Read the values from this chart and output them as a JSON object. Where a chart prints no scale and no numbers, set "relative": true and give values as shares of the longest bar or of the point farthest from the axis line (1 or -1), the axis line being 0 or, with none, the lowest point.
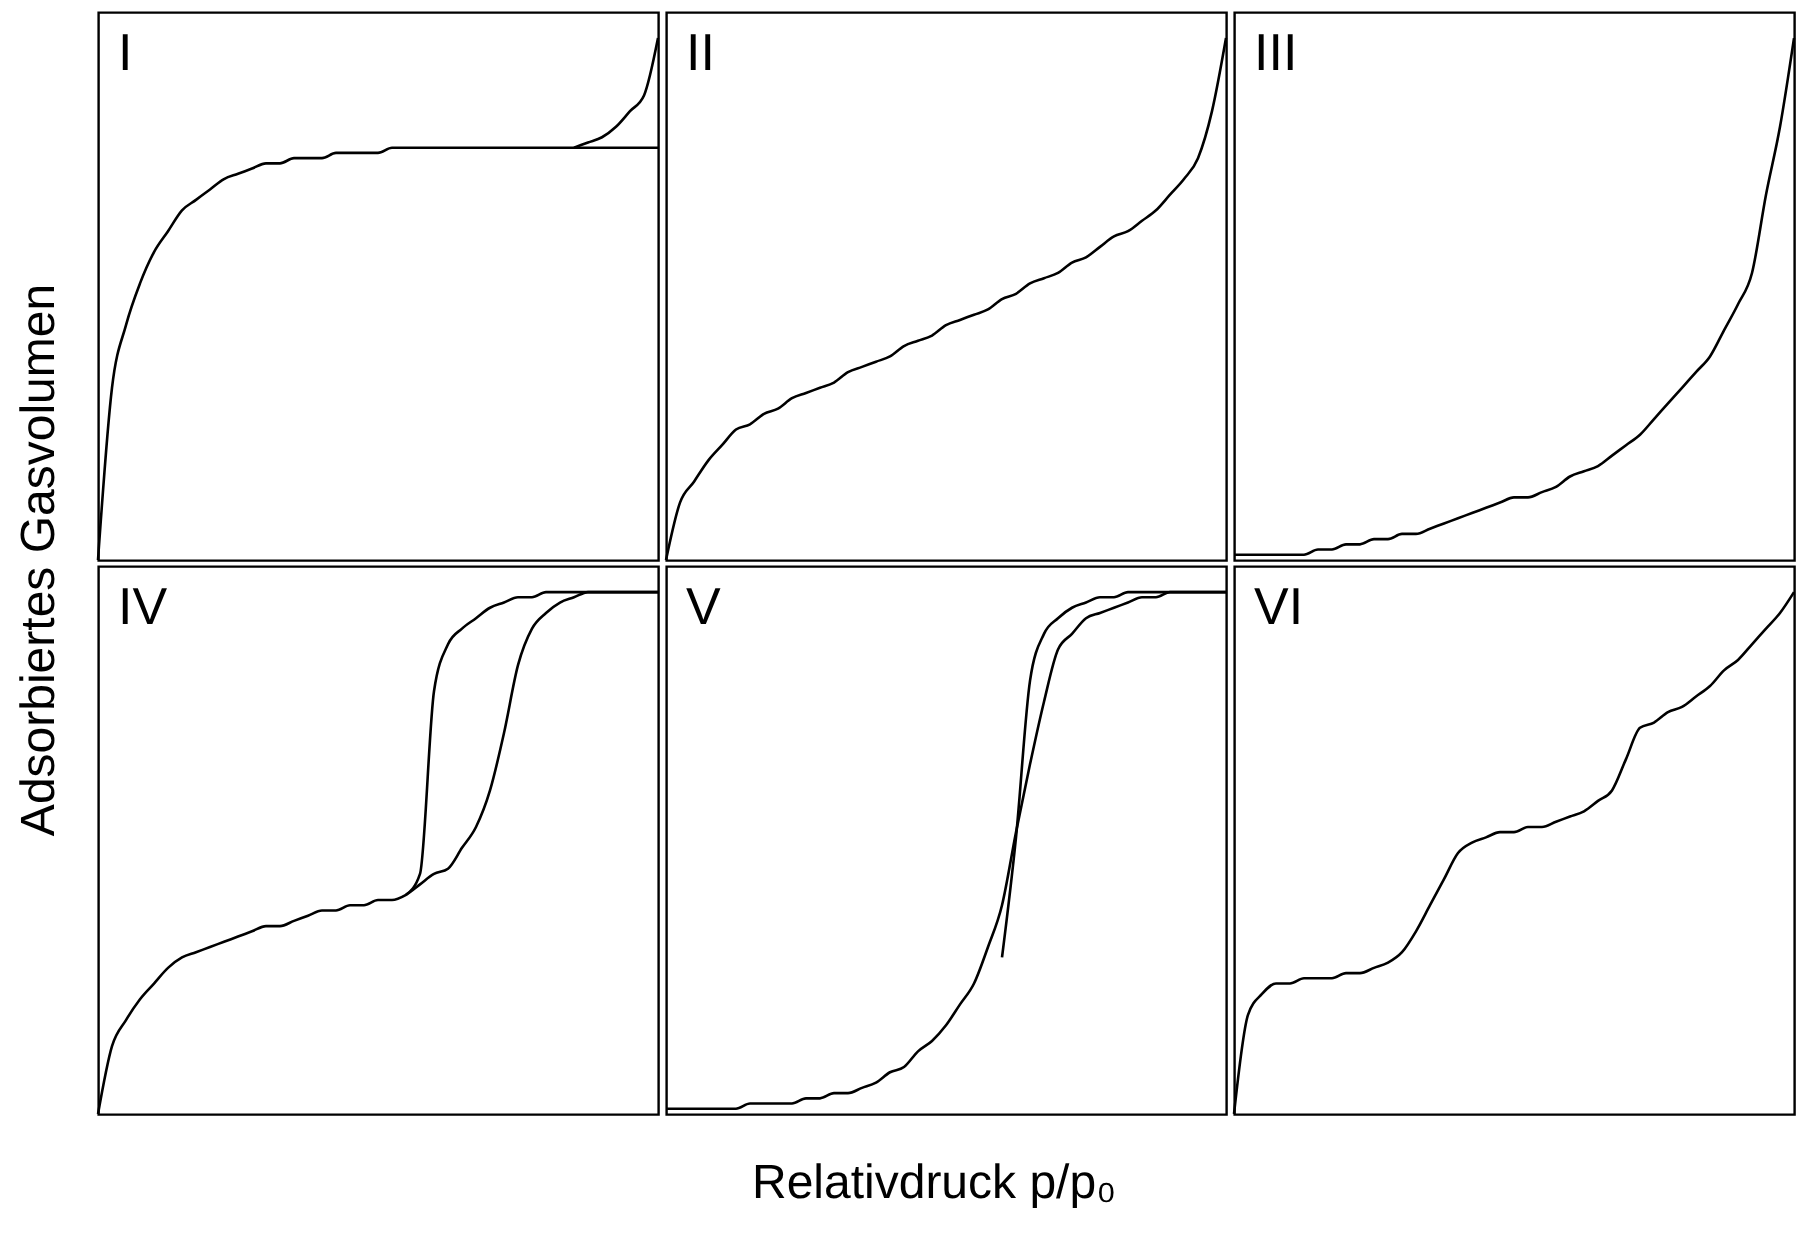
{
  "chart_data": [
    {
      "type": "line",
      "title": "I",
      "ylabel": "Adsorbiertes Gasvolumen",
      "relative": true,
      "tick_labels": false,
      "line_style": "solid",
      "categories": [
        null,
        null,
        null,
        null,
        null,
        null,
        null,
        null,
        null,
        null,
        null,
        null,
        null,
        null,
        null,
        null,
        null,
        null,
        null,
        null,
        null,
        null,
        null,
        null,
        null,
        null,
        null,
        null,
        null,
        null,
        null,
        null,
        null,
        null,
        null,
        null,
        null,
        null,
        null,
        null,
        null
      ],
      "series": [
        {
          "color": "#000000",
          "values": [
            0,
            0.33,
            0.45,
            0.53,
            0.59,
            0.63,
            0.67,
            0.69,
            0.71,
            0.73,
            0.74,
            0.75,
            0.76,
            0.76,
            0.77,
            0.77,
            0.77,
            0.78,
            0.78,
            0.78,
            0.78,
            0.79,
            0.79,
            0.79,
            0.79,
            0.79,
            0.79,
            0.79,
            0.79,
            0.79,
            0.79,
            0.79,
            0.79,
            0.79,
            0.79,
            0.79,
            0.79,
            0.79,
            0.79,
            0.79,
            0.79
          ]
        },
        {
          "color": "#000000",
          "values": [
            null,
            null,
            null,
            null,
            null,
            null,
            null,
            null,
            null,
            null,
            null,
            null,
            null,
            null,
            null,
            null,
            null,
            null,
            null,
            null,
            null,
            null,
            null,
            null,
            null,
            null,
            null,
            null,
            null,
            null,
            null,
            null,
            null,
            null,
            0.79,
            0.8,
            0.81,
            0.83,
            0.86,
            0.89,
            1
          ]
        }
      ]
    },
    {
      "type": "line",
      "title": "II",
      "relative": true,
      "tick_labels": false,
      "line_style": "solid",
      "categories": [
        null,
        null,
        null,
        null,
        null,
        null,
        null,
        null,
        null,
        null,
        null,
        null,
        null,
        null,
        null,
        null,
        null,
        null,
        null,
        null,
        null,
        null,
        null,
        null,
        null,
        null,
        null,
        null,
        null,
        null,
        null,
        null,
        null,
        null,
        null,
        null,
        null,
        null,
        null,
        null,
        null
      ],
      "series": [
        {
          "color": "#000000",
          "values": [
            0,
            0.11,
            0.15,
            0.19,
            0.22,
            0.25,
            0.26,
            0.28,
            0.29,
            0.31,
            0.32,
            0.33,
            0.34,
            0.36,
            0.37,
            0.38,
            0.39,
            0.41,
            0.42,
            0.43,
            0.45,
            0.46,
            0.47,
            0.48,
            0.5,
            0.51,
            0.53,
            0.54,
            0.55,
            0.57,
            0.58,
            0.6,
            0.62,
            0.63,
            0.65,
            0.67,
            0.7,
            0.73,
            0.77,
            0.86,
            1
          ]
        }
      ]
    },
    {
      "type": "line",
      "title": "III",
      "relative": true,
      "tick_labels": false,
      "line_style": "solid",
      "categories": [
        null,
        null,
        null,
        null,
        null,
        null,
        null,
        null,
        null,
        null,
        null,
        null,
        null,
        null,
        null,
        null,
        null,
        null,
        null,
        null,
        null,
        null,
        null,
        null,
        null,
        null,
        null,
        null,
        null,
        null,
        null,
        null,
        null,
        null,
        null,
        null,
        null,
        null,
        null,
        null,
        null
      ],
      "series": [
        {
          "color": "#000000",
          "values": [
            0.01,
            0.01,
            0.01,
            0.01,
            0.01,
            0.01,
            0.02,
            0.02,
            0.03,
            0.03,
            0.04,
            0.04,
            0.05,
            0.05,
            0.06,
            0.07,
            0.08,
            0.09,
            0.1,
            0.11,
            0.12,
            0.12,
            0.13,
            0.14,
            0.16,
            0.17,
            0.18,
            0.2,
            0.22,
            0.24,
            0.27,
            0.3,
            0.33,
            0.36,
            0.39,
            0.44,
            0.49,
            0.55,
            0.7,
            0.83,
            1
          ]
        }
      ]
    },
    {
      "type": "line",
      "title": "IV",
      "relative": true,
      "tick_labels": false,
      "line_style": "solid",
      "categories": [
        null,
        null,
        null,
        null,
        null,
        null,
        null,
        null,
        null,
        null,
        null,
        null,
        null,
        null,
        null,
        null,
        null,
        null,
        null,
        null,
        null,
        null,
        null,
        null,
        null,
        null,
        null,
        null,
        null,
        null,
        null,
        null,
        null,
        null,
        null,
        null,
        null,
        null,
        null,
        null,
        null
      ],
      "series": [
        {
          "color": "#000000",
          "values": [
            0,
            0.13,
            0.18,
            0.22,
            0.25,
            0.28,
            0.3,
            0.31,
            0.32,
            0.33,
            0.34,
            0.35,
            0.36,
            0.36,
            0.37,
            0.38,
            0.39,
            0.39,
            0.4,
            0.4,
            0.41,
            0.41,
            0.42,
            0.44,
            0.46,
            0.47,
            0.51,
            0.55,
            0.62,
            0.73,
            0.86,
            0.93,
            0.96,
            0.98,
            0.99,
            1,
            1,
            1,
            1,
            1,
            1
          ]
        },
        {
          "color": "#000000",
          "values": [
            null,
            null,
            null,
            null,
            null,
            null,
            null,
            null,
            null,
            null,
            null,
            null,
            null,
            null,
            null,
            null,
            null,
            null,
            null,
            null,
            null,
            null,
            0.42,
            0.46,
            0.81,
            0.9,
            0.93,
            0.95,
            0.97,
            0.98,
            0.99,
            0.99,
            1,
            1,
            1,
            1,
            1,
            1,
            1,
            1,
            1
          ]
        }
      ]
    },
    {
      "type": "line",
      "title": "V",
      "xlabel": "Relativdruck p/p₀",
      "relative": true,
      "tick_labels": false,
      "line_style": "solid",
      "categories": [
        null,
        null,
        null,
        null,
        null,
        null,
        null,
        null,
        null,
        null,
        null,
        null,
        null,
        null,
        null,
        null,
        null,
        null,
        null,
        null,
        null,
        null,
        null,
        null,
        null,
        null,
        null,
        null,
        null,
        null,
        null,
        null,
        null,
        null,
        null,
        null,
        null,
        null,
        null,
        null,
        null
      ],
      "series": [
        {
          "color": "#000000",
          "values": [
            0.01,
            0.01,
            0.01,
            0.01,
            0.01,
            0.01,
            0.02,
            0.02,
            0.02,
            0.02,
            0.03,
            0.03,
            0.04,
            0.04,
            0.05,
            0.06,
            0.08,
            0.09,
            0.12,
            0.14,
            0.17,
            0.21,
            0.25,
            0.32,
            0.4,
            0.54,
            0.67,
            0.79,
            0.89,
            0.92,
            0.95,
            0.96,
            0.97,
            0.98,
            0.99,
            0.99,
            1,
            1,
            1,
            1,
            1
          ]
        },
        {
          "color": "#000000",
          "values": [
            null,
            null,
            null,
            null,
            null,
            null,
            null,
            null,
            null,
            null,
            null,
            null,
            null,
            null,
            null,
            null,
            null,
            null,
            null,
            null,
            null,
            null,
            null,
            null,
            0.3,
            0.53,
            0.83,
            0.92,
            0.95,
            0.97,
            0.98,
            0.99,
            0.99,
            1,
            1,
            1,
            1,
            1,
            1,
            1,
            1
          ]
        }
      ]
    },
    {
      "type": "line",
      "title": "VI",
      "relative": true,
      "tick_labels": false,
      "line_style": "solid",
      "categories": [
        null,
        null,
        null,
        null,
        null,
        null,
        null,
        null,
        null,
        null,
        null,
        null,
        null,
        null,
        null,
        null,
        null,
        null,
        null,
        null,
        null,
        null,
        null,
        null,
        null,
        null,
        null,
        null,
        null,
        null,
        null,
        null,
        null,
        null,
        null,
        null,
        null,
        null,
        null,
        null,
        null
      ],
      "series": [
        {
          "color": "#000000",
          "values": [
            0,
            0.19,
            0.23,
            0.25,
            0.25,
            0.26,
            0.26,
            0.26,
            0.27,
            0.27,
            0.28,
            0.29,
            0.31,
            0.35,
            0.4,
            0.45,
            0.5,
            0.52,
            0.53,
            0.54,
            0.54,
            0.55,
            0.55,
            0.56,
            0.57,
            0.58,
            0.6,
            0.62,
            0.68,
            0.74,
            0.75,
            0.77,
            0.78,
            0.8,
            0.82,
            0.85,
            0.87,
            0.9,
            0.93,
            0.96,
            1
          ]
        }
      ]
    }
  ]
}
